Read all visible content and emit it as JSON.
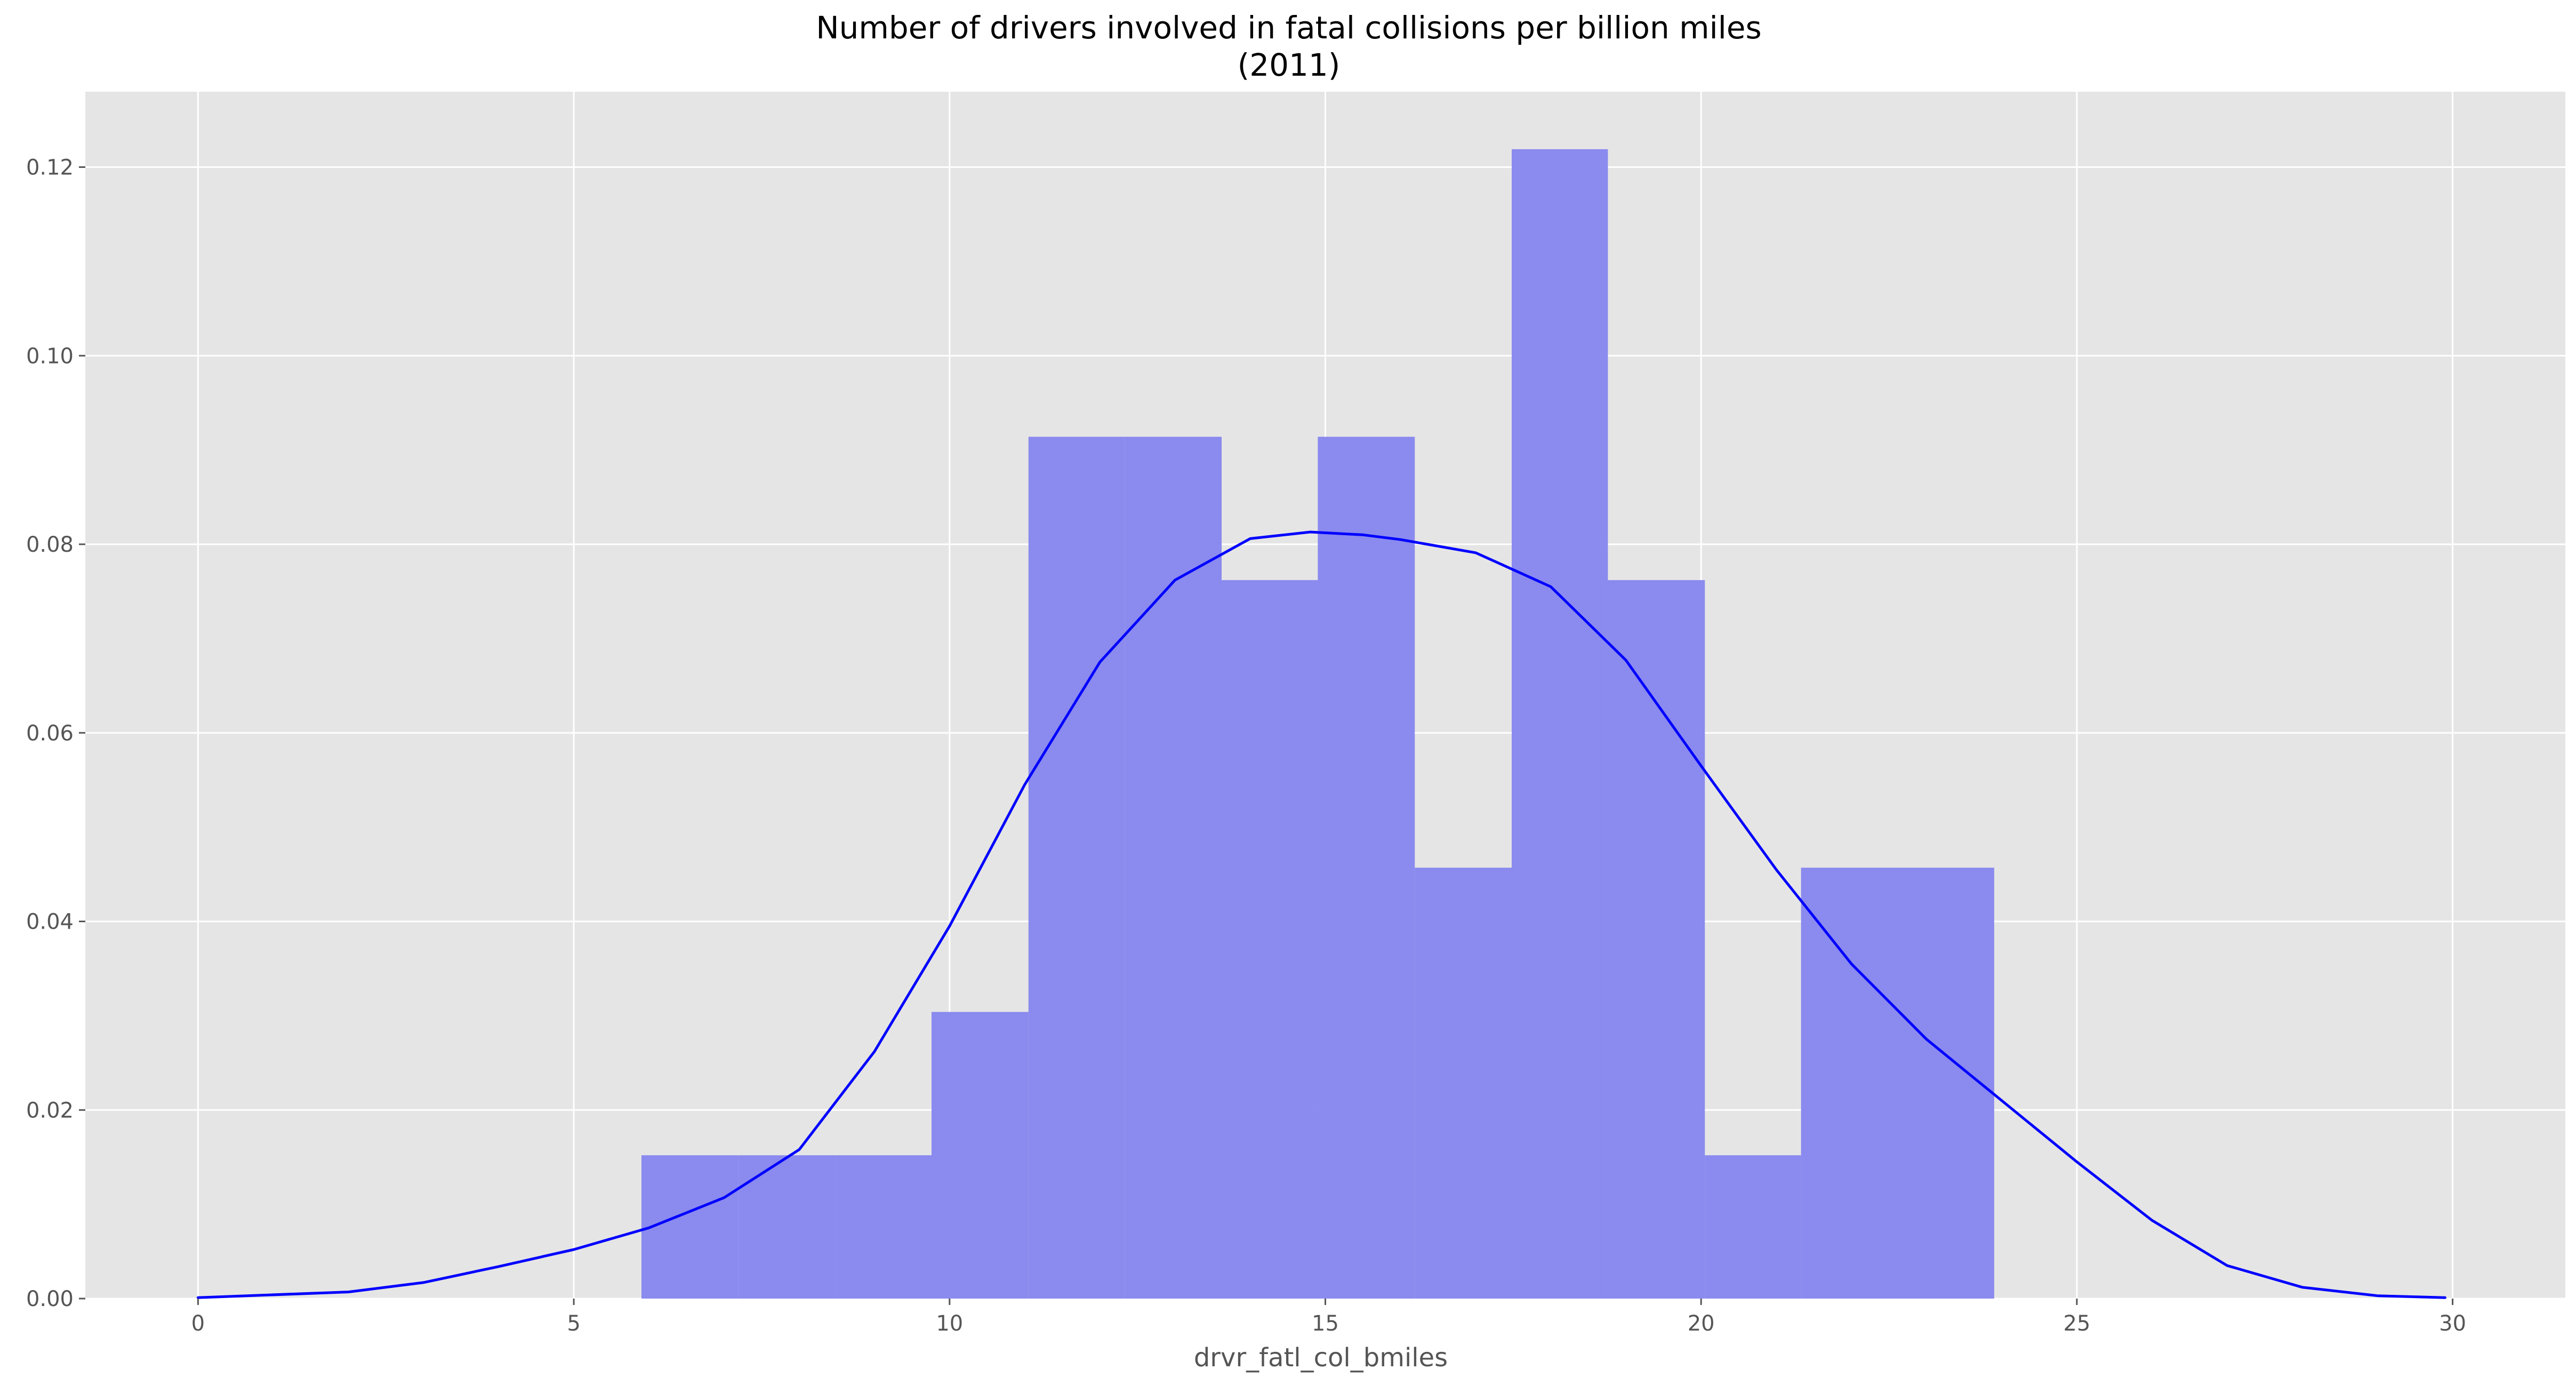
{
  "chart_data": {
    "type": "bar",
    "title": "Number of drivers involved in fatal collisions per billion miles",
    "subtitle": "(2011)",
    "xlabel": "drvr_fatl_col_bmiles",
    "ylabel": "",
    "xlim": [
      -1.5,
      31.5
    ],
    "ylim": [
      0,
      0.128
    ],
    "x_ticks": [
      0,
      5,
      10,
      15,
      20,
      25,
      30
    ],
    "x_tick_labels": [
      "0",
      "5",
      "10",
      "15",
      "20",
      "25",
      "30"
    ],
    "y_ticks": [
      0.0,
      0.02,
      0.04,
      0.06,
      0.08,
      0.1,
      0.12
    ],
    "y_tick_labels": [
      "0.00",
      "0.02",
      "0.04",
      "0.06",
      "0.08",
      "0.10",
      "0.12"
    ],
    "grid": true,
    "background": "#e5e5e5",
    "bar_color": "#8a8aef",
    "line_color": "#0000ff",
    "bins": [
      {
        "x0": 5.9,
        "x1": 7.19,
        "value": 0.0152
      },
      {
        "x0": 7.19,
        "x1": 8.48,
        "value": 0.0152
      },
      {
        "x0": 8.48,
        "x1": 9.76,
        "value": 0.0152
      },
      {
        "x0": 9.76,
        "x1": 11.05,
        "value": 0.0304
      },
      {
        "x0": 11.05,
        "x1": 12.33,
        "value": 0.0914
      },
      {
        "x0": 12.33,
        "x1": 13.62,
        "value": 0.0914
      },
      {
        "x0": 13.62,
        "x1": 14.9,
        "value": 0.0762
      },
      {
        "x0": 14.9,
        "x1": 16.19,
        "value": 0.0914
      },
      {
        "x0": 16.19,
        "x1": 17.48,
        "value": 0.0457
      },
      {
        "x0": 17.48,
        "x1": 18.76,
        "value": 0.1219
      },
      {
        "x0": 18.76,
        "x1": 20.05,
        "value": 0.0762
      },
      {
        "x0": 20.05,
        "x1": 21.33,
        "value": 0.0152
      },
      {
        "x0": 21.33,
        "x1": 22.62,
        "value": 0.0457
      },
      {
        "x0": 22.62,
        "x1": 23.9,
        "value": 0.0457
      }
    ],
    "kde": {
      "name": "",
      "x": [
        0.0,
        2.0,
        3.0,
        4.0,
        5.0,
        6.0,
        7.0,
        8.0,
        9.0,
        10.0,
        11.0,
        12.0,
        13.0,
        14.0,
        14.8,
        15.5,
        16.0,
        17.0,
        18.0,
        19.0,
        20.0,
        21.0,
        22.0,
        23.0,
        24.0,
        25.0,
        26.0,
        27.0,
        28.0,
        29.0,
        29.9
      ],
      "y": [
        0.0001,
        0.0007,
        0.0017,
        0.0034,
        0.0052,
        0.0075,
        0.0107,
        0.0158,
        0.0262,
        0.0395,
        0.0545,
        0.0675,
        0.0762,
        0.0806,
        0.0813,
        0.081,
        0.0805,
        0.0791,
        0.0755,
        0.0677,
        0.0565,
        0.0455,
        0.0355,
        0.0275,
        0.021,
        0.0145,
        0.0083,
        0.0035,
        0.0012,
        0.0003,
        0.0001
      ]
    }
  }
}
